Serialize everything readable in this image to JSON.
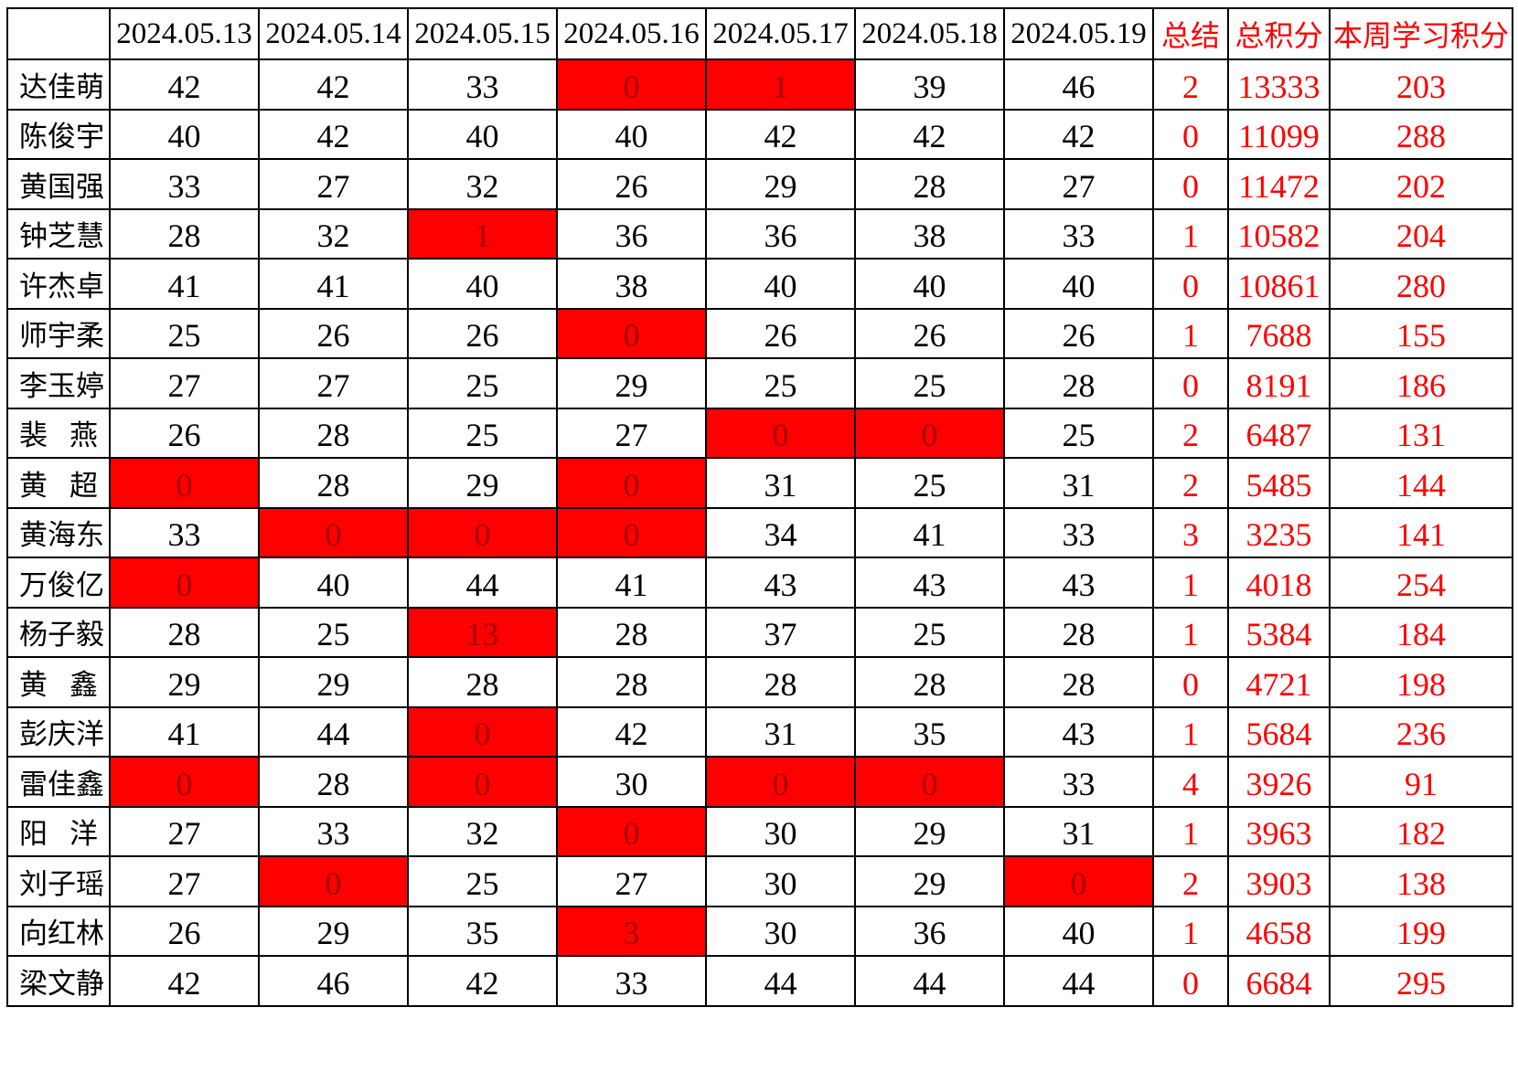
{
  "colors": {
    "highlight_fill": "#ff0000",
    "highlight_cell_text": "#a30000",
    "accent_text": "#ff0000",
    "grid_line": "#000000",
    "body_text": "#000000",
    "background": "#ffffff"
  },
  "table": {
    "header": [
      "",
      "2024.05.13",
      "2024.05.14",
      "2024.05.15",
      "2024.05.16",
      "2024.05.17",
      "2024.05.18",
      "2024.05.19",
      "总结",
      "总积分",
      "本周学习积分"
    ],
    "accent_header_start_index": 8,
    "rows": [
      {
        "name": "达佳萌",
        "days": [
          "42",
          "42",
          "33",
          "0",
          "1",
          "39",
          "46"
        ],
        "red_days": [
          3,
          4
        ],
        "summary": "2",
        "total_points": "13333",
        "week_points": "203"
      },
      {
        "name": "陈俊宇",
        "days": [
          "40",
          "42",
          "40",
          "40",
          "42",
          "42",
          "42"
        ],
        "red_days": [],
        "summary": "0",
        "total_points": "11099",
        "week_points": "288"
      },
      {
        "name": "黄国强",
        "days": [
          "33",
          "27",
          "32",
          "26",
          "29",
          "28",
          "27"
        ],
        "red_days": [],
        "summary": "0",
        "total_points": "11472",
        "week_points": "202"
      },
      {
        "name": "钟芝慧",
        "days": [
          "28",
          "32",
          "1",
          "36",
          "36",
          "38",
          "33"
        ],
        "red_days": [
          2
        ],
        "summary": "1",
        "total_points": "10582",
        "week_points": "204"
      },
      {
        "name": "许杰卓",
        "days": [
          "41",
          "41",
          "40",
          "38",
          "40",
          "40",
          "40"
        ],
        "red_days": [],
        "summary": "0",
        "total_points": "10861",
        "week_points": "280"
      },
      {
        "name": "师宇柔",
        "days": [
          "25",
          "26",
          "26",
          "0",
          "26",
          "26",
          "26"
        ],
        "red_days": [
          3
        ],
        "summary": "1",
        "total_points": "7688",
        "week_points": "155"
      },
      {
        "name": "李玉婷",
        "days": [
          "27",
          "27",
          "25",
          "29",
          "25",
          "25",
          "28"
        ],
        "red_days": [],
        "summary": "0",
        "total_points": "8191",
        "week_points": "186"
      },
      {
        "name": "裴燕",
        "days": [
          "26",
          "28",
          "25",
          "27",
          "0",
          "0",
          "25"
        ],
        "red_days": [
          4,
          5
        ],
        "summary": "2",
        "total_points": "6487",
        "week_points": "131"
      },
      {
        "name": "黄超",
        "days": [
          "0",
          "28",
          "29",
          "0",
          "31",
          "25",
          "31"
        ],
        "red_days": [
          0,
          3
        ],
        "summary": "2",
        "total_points": "5485",
        "week_points": "144"
      },
      {
        "name": "黄海东",
        "days": [
          "33",
          "0",
          "0",
          "0",
          "34",
          "41",
          "33"
        ],
        "red_days": [
          1,
          2,
          3
        ],
        "summary": "3",
        "total_points": "3235",
        "week_points": "141"
      },
      {
        "name": "万俊亿",
        "days": [
          "0",
          "40",
          "44",
          "41",
          "43",
          "43",
          "43"
        ],
        "red_days": [
          0
        ],
        "summary": "1",
        "total_points": "4018",
        "week_points": "254"
      },
      {
        "name": "杨子毅",
        "days": [
          "28",
          "25",
          "13",
          "28",
          "37",
          "25",
          "28"
        ],
        "red_days": [
          2
        ],
        "summary": "1",
        "total_points": "5384",
        "week_points": "184"
      },
      {
        "name": "黄鑫",
        "days": [
          "29",
          "29",
          "28",
          "28",
          "28",
          "28",
          "28"
        ],
        "red_days": [],
        "summary": "0",
        "total_points": "4721",
        "week_points": "198"
      },
      {
        "name": "彭庆洋",
        "days": [
          "41",
          "44",
          "0",
          "42",
          "31",
          "35",
          "43"
        ],
        "red_days": [
          2
        ],
        "summary": "1",
        "total_points": "5684",
        "week_points": "236"
      },
      {
        "name": "雷佳鑫",
        "days": [
          "0",
          "28",
          "0",
          "30",
          "0",
          "0",
          "33"
        ],
        "red_days": [
          0,
          2,
          4,
          5
        ],
        "summary": "4",
        "total_points": "3926",
        "week_points": "91"
      },
      {
        "name": "阳洋",
        "days": [
          "27",
          "33",
          "32",
          "0",
          "30",
          "29",
          "31"
        ],
        "red_days": [
          3
        ],
        "summary": "1",
        "total_points": "3963",
        "week_points": "182"
      },
      {
        "name": "刘子瑶",
        "days": [
          "27",
          "0",
          "25",
          "27",
          "30",
          "29",
          "0"
        ],
        "red_days": [
          1,
          6
        ],
        "summary": "2",
        "total_points": "3903",
        "week_points": "138"
      },
      {
        "name": "向红林",
        "days": [
          "26",
          "29",
          "35",
          "3",
          "30",
          "36",
          "40"
        ],
        "red_days": [
          3
        ],
        "summary": "1",
        "total_points": "4658",
        "week_points": "199"
      },
      {
        "name": "梁文静",
        "days": [
          "42",
          "46",
          "42",
          "33",
          "44",
          "44",
          "44"
        ],
        "red_days": [],
        "summary": "0",
        "total_points": "6684",
        "week_points": "295"
      }
    ]
  }
}
